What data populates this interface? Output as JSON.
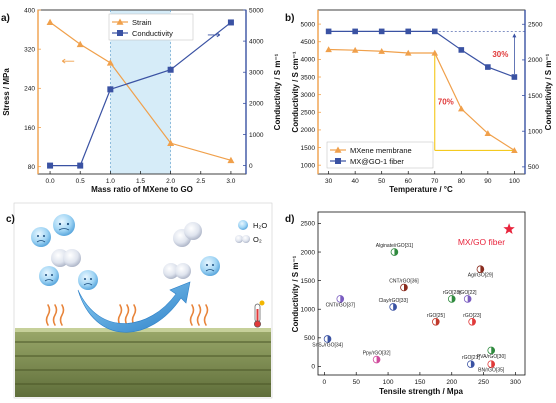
{
  "panel_labels": [
    "a)",
    "b)",
    "c)",
    "d)"
  ],
  "colors": {
    "orange": "#f0a04b",
    "blue": "#3a52a3",
    "red_annotation": "#e03a3a",
    "yellow_annotation": "#f2c200",
    "shade": "#d6ecf8",
    "star": "#e8243c"
  },
  "chart_data": [
    {
      "type": "line",
      "panel": "a)",
      "xlabel": "Mass ratio of MXene to GO",
      "ylabel_left": "Stress / MPa",
      "ylabel_right": "Conductivity / S m⁻¹",
      "x_ticks": [
        "0.0",
        "0.5",
        "1.0",
        "1.5",
        "2.0",
        "2.5",
        "3.0"
      ],
      "y_left_ticks": [
        "80",
        "160",
        "240",
        "320",
        "400"
      ],
      "y_right_ticks": [
        "0",
        "1000",
        "2000",
        "3000",
        "4000",
        "5000"
      ],
      "xlim": [
        -0.2,
        3.25
      ],
      "ylim_left": [
        65,
        400
      ],
      "ylim_right": [
        -270,
        5000
      ],
      "shaded_region": [
        1.0,
        2.0
      ],
      "series": [
        {
          "name": "Strain",
          "axis": "left",
          "marker": "triangle",
          "x": [
            0,
            0.5,
            1,
            2,
            3
          ],
          "values": [
            375,
            330,
            292,
            128,
            93
          ]
        },
        {
          "name": "Conductivity",
          "axis": "right",
          "marker": "square",
          "x": [
            0,
            0.5,
            1,
            2,
            3
          ],
          "values": [
            0,
            0,
            2450,
            3080,
            4600
          ]
        }
      ]
    },
    {
      "type": "line",
      "panel": "b)",
      "xlabel": "Temperature / °C",
      "ylabel_left": "Conductivity / S cm⁻¹",
      "ylabel_right": "Conductivity / S m⁻¹",
      "x_ticks": [
        "30",
        "40",
        "50",
        "60",
        "70",
        "80",
        "90",
        "100"
      ],
      "y_left_ticks": [
        "1000",
        "1500",
        "2000",
        "2500",
        "3000",
        "3500",
        "4000",
        "4500",
        "5000"
      ],
      "y_right_ticks": [
        "500",
        "1000",
        "1500",
        "2000",
        "2500"
      ],
      "xlim": [
        26,
        104
      ],
      "ylim_left": [
        750,
        5400
      ],
      "ylim_right": [
        400,
        2700
      ],
      "series": [
        {
          "name": "MXene membrane",
          "axis": "left",
          "marker": "triangle",
          "x": [
            30,
            40,
            50,
            60,
            70,
            80,
            90,
            100
          ],
          "values": [
            4280,
            4260,
            4230,
            4180,
            4180,
            2600,
            1900,
            1420
          ]
        },
        {
          "name": "MX@GO-1 fiber",
          "axis": "right",
          "marker": "square",
          "x": [
            30,
            40,
            50,
            60,
            70,
            80,
            90,
            100
          ],
          "values": [
            2400,
            2400,
            2400,
            2400,
            2400,
            2140,
            1900,
            1760
          ]
        }
      ],
      "annotations": [
        "30%",
        "70%"
      ]
    },
    {
      "type": "scatter",
      "panel": "d)",
      "xlabel": "Tensile strength / Mpa",
      "ylabel": "Conductivity / S m⁻¹",
      "x_ticks": [
        "0",
        "50",
        "100",
        "150",
        "200",
        "250",
        "300"
      ],
      "y_ticks": [
        "0",
        "500",
        "1000",
        "1500",
        "2000",
        "2500"
      ],
      "xlim": [
        -10,
        315
      ],
      "ylim": [
        -150,
        2700
      ],
      "highlight": {
        "label": "MX/GO fiber",
        "x": 290,
        "y": 2400
      },
      "points": [
        {
          "label": "Alginate/rGO[31]",
          "x": 110,
          "y": 2000,
          "color": "#2f8a3e"
        },
        {
          "label": "Ag/rGO[29]",
          "x": 245,
          "y": 1700,
          "color": "#8a2c1e"
        },
        {
          "label": "CNT/rGO[36]",
          "x": 125,
          "y": 1380,
          "color": "#8a2c1e"
        },
        {
          "label": "CNT/rGO[37]",
          "x": 25,
          "y": 1180,
          "color": "#7a5cc0"
        },
        {
          "label": "rGO[28]",
          "x": 200,
          "y": 1180,
          "color": "#2f8a3e"
        },
        {
          "label": "rGO[22]",
          "x": 225,
          "y": 1180,
          "color": "#7a5cc0"
        },
        {
          "label": "Clay/rGO[33]",
          "x": 108,
          "y": 1040,
          "color": "#3a52a3"
        },
        {
          "label": "rGO[25]",
          "x": 175,
          "y": 780,
          "color": "#c0392b"
        },
        {
          "label": "rGO[23]",
          "x": 232,
          "y": 780,
          "color": "#e03a3a"
        },
        {
          "label": "SnS₂/rGO[34]",
          "x": 5,
          "y": 480,
          "color": "#3a52a3"
        },
        {
          "label": "PVA/rGO[30]",
          "x": 262,
          "y": 280,
          "color": "#2f8a3e"
        },
        {
          "label": "Ppy/rGO[32]",
          "x": 82,
          "y": 120,
          "color": "#d04a9c"
        },
        {
          "label": "rGO[21]",
          "x": 230,
          "y": 40,
          "color": "#3a52a3"
        },
        {
          "label": "BN/rGO[35]",
          "x": 262,
          "y": 40,
          "color": "#e03a3a"
        }
      ]
    }
  ],
  "panel_c": {
    "legend_h2o": "H₂O",
    "legend_o2": "O₂"
  }
}
